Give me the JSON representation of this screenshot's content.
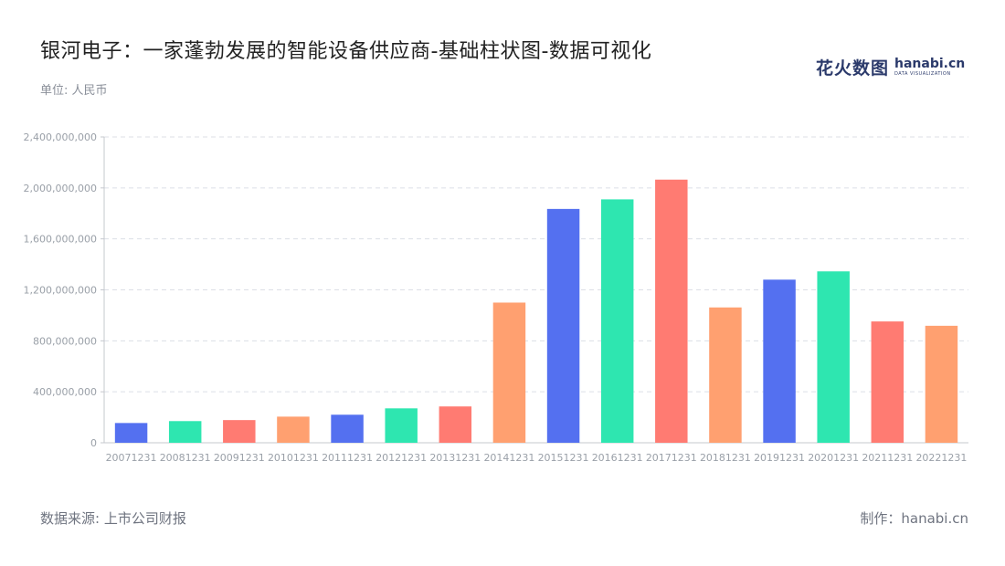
{
  "title": "银河电子：一家蓬勃发展的智能设备供应商-基础柱状图-数据可视化",
  "unit_label": "单位: 人民币",
  "source_label": "数据来源: 上市公司财报",
  "maker_label": "制作：hanabi.cn",
  "brand": {
    "cn": "花火数图",
    "en": "hanabi.cn",
    "sub": "DATA VISUALIZATION"
  },
  "colors": {
    "palette": [
      "#5470f0",
      "#2ee6b0",
      "#ff7b72",
      "#ffa070"
    ],
    "grid": "#dcdfe6",
    "axis": "#c5c8ce"
  },
  "chart_data": {
    "type": "bar",
    "categories": [
      "20071231",
      "20081231",
      "20091231",
      "20101231",
      "20111231",
      "20121231",
      "20131231",
      "20141231",
      "20151231",
      "20161231",
      "20171231",
      "20181231",
      "20191231",
      "20201231",
      "20211231",
      "20221231"
    ],
    "values": [
      155000000,
      170000000,
      178000000,
      205000000,
      220000000,
      270000000,
      285000000,
      1100000000,
      1835000000,
      1910000000,
      2065000000,
      1062000000,
      1280000000,
      1345000000,
      952000000,
      918000000
    ],
    "y_ticks": [
      "0",
      "400,000,000",
      "800,000,000",
      "1,200,000,000",
      "1,600,000,000",
      "2,000,000,000",
      "2,400,000,000"
    ],
    "ylim": [
      0,
      2400000000
    ],
    "grid": true,
    "legend": "none"
  }
}
